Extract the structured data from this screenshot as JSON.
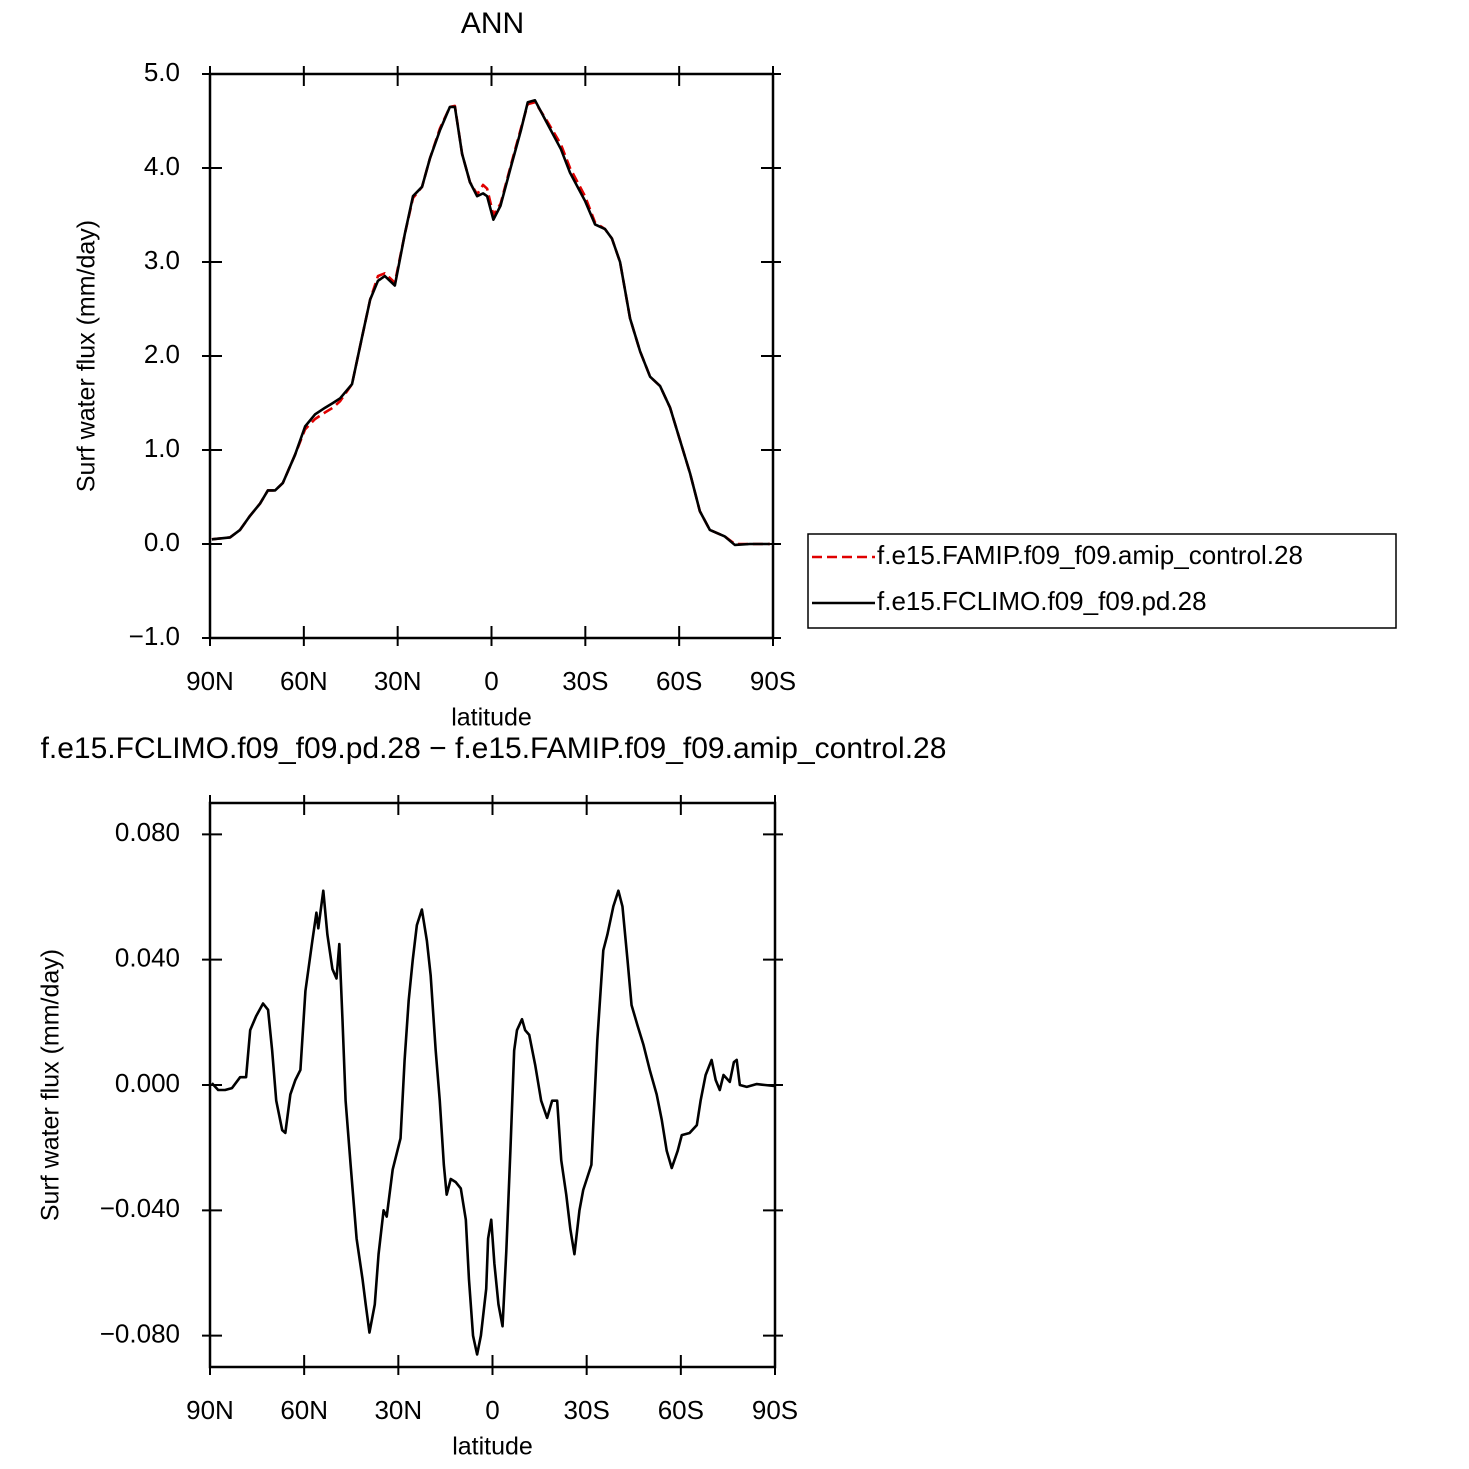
{
  "chart_data": [
    {
      "type": "line",
      "title": "ANN",
      "xlabel": "latitude",
      "ylabel": "Surf water flux (mm/day)",
      "x": [
        89.4,
        83.6,
        80.4,
        77.2,
        74,
        71.5,
        69.2,
        66.7,
        62.8,
        59.6,
        56.4,
        53.2,
        50.7,
        48.4,
        44.6,
        41.4,
        38.8,
        36.3,
        34.1,
        30.9,
        27.7,
        25.1,
        22.2,
        19.7,
        16.5,
        13.3,
        11.7,
        9.4,
        6.9,
        4.6,
        2.7,
        1.4,
        -0.6,
        -2.9,
        -6.1,
        -9.4,
        -11.6,
        -13.9,
        -17.4,
        -22.2,
        -25.1,
        -29.9,
        -33.1,
        -36.3,
        -38.5,
        -41.1,
        -44.3,
        -47.5,
        -50.7,
        -53.9,
        -57.1,
        -60.3,
        -63.5,
        -66.6,
        -69.8,
        -74.6,
        -77.8,
        -82.6,
        -89
      ],
      "series": [
        {
          "name": "f.e15.FAMIP.f09_f09.amip_control.28",
          "color": "#e00000",
          "line_style": "dashed",
          "values": [
            0.05,
            0.07,
            0.15,
            0.3,
            0.43,
            0.57,
            0.57,
            0.65,
            0.95,
            1.22,
            1.33,
            1.4,
            1.45,
            1.52,
            1.7,
            2.2,
            2.6,
            2.85,
            2.88,
            2.78,
            3.3,
            3.68,
            3.8,
            4.1,
            4.42,
            4.65,
            4.66,
            4.15,
            3.85,
            3.72,
            3.82,
            3.78,
            3.5,
            3.62,
            4.02,
            4.42,
            4.68,
            4.7,
            4.52,
            4.25,
            4.0,
            3.7,
            3.42,
            3.35,
            3.25,
            3.0,
            2.4,
            2.05,
            1.78,
            1.68,
            1.45,
            1.1,
            0.75,
            0.35,
            0.15,
            0.08,
            0.0,
            0.0,
            0.0
          ]
        },
        {
          "name": "f.e15.FCLIMO.f09_f09.pd.28",
          "color": "#000000",
          "line_style": "solid",
          "values": [
            0.05,
            0.07,
            0.15,
            0.3,
            0.43,
            0.57,
            0.57,
            0.65,
            0.95,
            1.25,
            1.38,
            1.45,
            1.5,
            1.55,
            1.7,
            2.2,
            2.6,
            2.8,
            2.85,
            2.75,
            3.3,
            3.7,
            3.8,
            4.1,
            4.4,
            4.65,
            4.65,
            4.15,
            3.85,
            3.7,
            3.73,
            3.7,
            3.45,
            3.6,
            4.0,
            4.4,
            4.7,
            4.72,
            4.5,
            4.2,
            3.95,
            3.65,
            3.4,
            3.35,
            3.25,
            3.0,
            2.4,
            2.05,
            1.78,
            1.68,
            1.45,
            1.1,
            0.75,
            0.35,
            0.15,
            0.08,
            -0.01,
            0.0,
            0.0
          ]
        }
      ],
      "xlim": [
        90,
        -90
      ],
      "xticks": [
        {
          "value": 90,
          "label": "90N"
        },
        {
          "value": 60,
          "label": "60N"
        },
        {
          "value": 30,
          "label": "30N"
        },
        0,
        {
          "value": -30,
          "label": "30S"
        },
        {
          "value": -60,
          "label": "60S"
        },
        {
          "value": -90,
          "label": "90S"
        }
      ],
      "ylim": [
        -1,
        5
      ],
      "yticks": [
        {
          "value": -1,
          "label": "−1.0"
        },
        {
          "value": 0,
          "label": "0.0"
        },
        {
          "value": 1,
          "label": "1.0"
        },
        {
          "value": 2,
          "label": "2.0"
        },
        {
          "value": 3,
          "label": "3.0"
        },
        {
          "value": 4,
          "label": "4.0"
        },
        {
          "value": 5,
          "label": "5.0"
        }
      ],
      "legend": "right"
    },
    {
      "type": "line",
      "title": "f.e15.FCLIMO.f09_f09.pd.28 − f.e15.FAMIP.f09_f09.amip_control.28",
      "xlabel": "latitude",
      "ylabel": "Surf water flux (mm/day)",
      "x": [
        89.4,
        87.4,
        85.2,
        83,
        80.4,
        78.5,
        77.2,
        75.3,
        73.1,
        71.5,
        70.2,
        68.9,
        67,
        66,
        64.4,
        62.8,
        61.2,
        59.6,
        57.4,
        56.1,
        55.5,
        53.9,
        52.6,
        51,
        49.7,
        48.8,
        47.8,
        46.8,
        45.2,
        43.3,
        41.4,
        40.4,
        39.2,
        37.5,
        36.3,
        34.7,
        33.7,
        31.8,
        29.3,
        28,
        26.7,
        25.4,
        24.1,
        22.5,
        20.9,
        19.7,
        18.1,
        16.8,
        15.5,
        14.6,
        13.3,
        11.7,
        10.1,
        8.5,
        7.5,
        6.2,
        4.9,
        3.7,
        2,
        1.4,
        0.4,
        -0.6,
        -1.9,
        -3.2,
        -4.4,
        -5.7,
        -6.9,
        -7.8,
        -9.4,
        -10.4,
        -11.7,
        -13.6,
        -15.5,
        -17.4,
        -19,
        -20.6,
        -21.9,
        -23.5,
        -24.8,
        -26.1,
        -27.7,
        -28.9,
        -31.5,
        -33.4,
        -35.3,
        -36.6,
        -38.5,
        -40.1,
        -41.4,
        -43,
        -44.3,
        -46.2,
        -48.1,
        -50.1,
        -52.3,
        -53.9,
        -55.5,
        -57.1,
        -59,
        -60.3,
        -62.8,
        -65.1,
        -66.3,
        -67.9,
        -69.8,
        -71.1,
        -72.4,
        -73.6,
        -75.6,
        -76.9,
        -77.8,
        -78.8,
        -81,
        -84.2,
        -86.8,
        -89.7
      ],
      "values": [
        0.0006,
        -0.0016,
        -0.0016,
        -0.001,
        0.0025,
        0.0025,
        0.0175,
        0.022,
        0.026,
        0.024,
        0.011,
        -0.005,
        -0.0144,
        -0.0153,
        -0.003,
        0.0016,
        0.0048,
        0.03,
        0.046,
        0.055,
        0.05,
        0.062,
        0.048,
        0.037,
        0.034,
        0.045,
        0.021,
        -0.005,
        -0.0255,
        -0.049,
        -0.062,
        -0.07,
        -0.079,
        -0.07,
        -0.054,
        -0.04,
        -0.042,
        -0.027,
        -0.017,
        0.008,
        0.027,
        0.04,
        0.051,
        0.056,
        0.046,
        0.035,
        0.011,
        -0.005,
        -0.0255,
        -0.035,
        -0.03,
        -0.031,
        -0.033,
        -0.043,
        -0.062,
        -0.08,
        -0.086,
        -0.08,
        -0.065,
        -0.049,
        -0.043,
        -0.057,
        -0.07,
        -0.077,
        -0.053,
        -0.021,
        0.011,
        0.0175,
        0.021,
        0.0175,
        0.016,
        0.0064,
        -0.005,
        -0.0105,
        -0.005,
        -0.005,
        -0.024,
        -0.035,
        -0.046,
        -0.054,
        -0.04,
        -0.0335,
        -0.0255,
        0.0144,
        0.043,
        0.048,
        0.057,
        0.062,
        0.057,
        0.04,
        0.0255,
        0.019,
        0.0128,
        0.0048,
        -0.003,
        -0.011,
        -0.021,
        -0.0265,
        -0.021,
        -0.016,
        -0.0153,
        -0.0128,
        -0.005,
        0.0032,
        0.008,
        0.0016,
        -0.0016,
        0.0032,
        0.001,
        0.0073,
        0.008,
        0,
        -0.0006,
        0.0003,
        0,
        -0.0003
      ],
      "color": "#000000",
      "xlim": [
        90,
        -90
      ],
      "xticks": [
        {
          "value": 90,
          "label": "90N"
        },
        {
          "value": 60,
          "label": "60N"
        },
        {
          "value": 30,
          "label": "30N"
        },
        0,
        {
          "value": -30,
          "label": "30S"
        },
        {
          "value": -60,
          "label": "60S"
        },
        {
          "value": -90,
          "label": "90S"
        }
      ],
      "ylim": [
        -0.09,
        0.09
      ],
      "yticks": [
        {
          "value": -0.08,
          "label": "−0.080"
        },
        {
          "value": -0.04,
          "label": "−0.040"
        },
        {
          "value": 0,
          "label": "0.000"
        },
        {
          "value": 0.04,
          "label": "0.040"
        },
        {
          "value": 0.08,
          "label": "0.080"
        }
      ]
    }
  ]
}
